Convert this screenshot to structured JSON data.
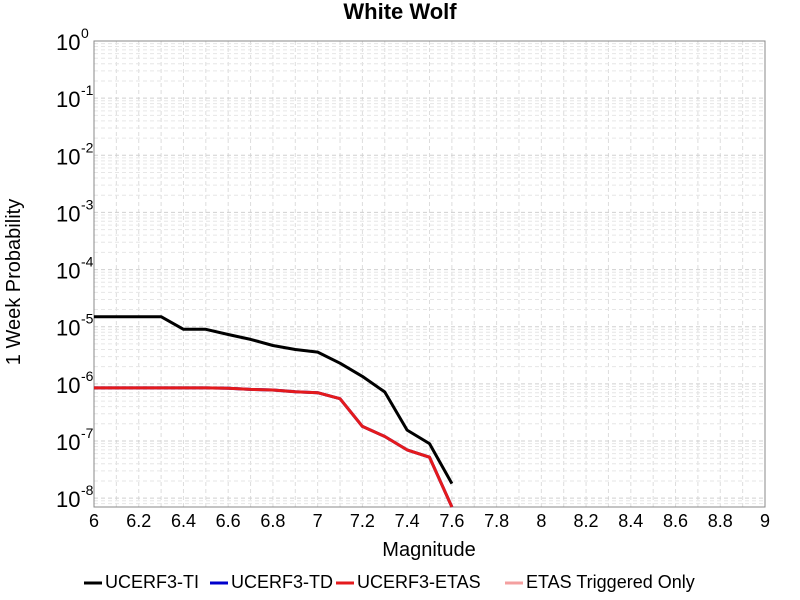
{
  "chart_data": {
    "type": "line",
    "title": "White Wolf",
    "xlabel": "Magnitude",
    "ylabel": "1 Week Probability",
    "xlim": [
      6,
      9
    ],
    "ylim": [
      7e-09,
      1
    ],
    "yscale": "log",
    "grid": true,
    "legend_position": "bottom",
    "x_ticks": [
      "6",
      "6.2",
      "6.4",
      "6.6",
      "6.8",
      "7",
      "7.2",
      "7.4",
      "7.6",
      "7.8",
      "8",
      "8.2",
      "8.4",
      "8.6",
      "8.8",
      "9"
    ],
    "y_ticks": [
      {
        "base": "10",
        "exp": "0",
        "value": 1
      },
      {
        "base": "10",
        "exp": "-1",
        "value": 0.1
      },
      {
        "base": "10",
        "exp": "-2",
        "value": 0.01
      },
      {
        "base": "10",
        "exp": "-3",
        "value": 0.001
      },
      {
        "base": "10",
        "exp": "-4",
        "value": 0.0001
      },
      {
        "base": "10",
        "exp": "-5",
        "value": 1e-05
      },
      {
        "base": "10",
        "exp": "-6",
        "value": 1e-06
      },
      {
        "base": "10",
        "exp": "-7",
        "value": 1e-07
      },
      {
        "base": "10",
        "exp": "-8",
        "value": 1e-08
      }
    ],
    "series": [
      {
        "name": "UCERF3-TI",
        "color": "#000000",
        "x": [
          6.0,
          6.1,
          6.2,
          6.3,
          6.4,
          6.5,
          6.6,
          6.7,
          6.8,
          6.9,
          7.0,
          7.1,
          7.2,
          7.3,
          7.4,
          7.5,
          7.6
        ],
        "y": [
          1.5e-05,
          1.5e-05,
          1.5e-05,
          1.5e-05,
          9e-06,
          9e-06,
          7.3e-06,
          6e-06,
          4.7e-06,
          4e-06,
          3.6e-06,
          2.3e-06,
          1.35e-06,
          7.2e-07,
          1.55e-07,
          9e-08,
          1.8e-08
        ]
      },
      {
        "name": "UCERF3-TD",
        "color": "#0000cc",
        "x": [
          6.0,
          6.1,
          6.2,
          6.3,
          6.4,
          6.5,
          6.6,
          6.7,
          6.8,
          6.9,
          7.0,
          7.1,
          7.2,
          7.3,
          7.4,
          7.5,
          7.6
        ],
        "y": [
          8.5e-07,
          8.5e-07,
          8.5e-07,
          8.5e-07,
          8.5e-07,
          8.5e-07,
          8.4e-07,
          8e-07,
          7.8e-07,
          7.3e-07,
          7e-07,
          5.5e-07,
          1.8e-07,
          1.2e-07,
          7e-08,
          5.2e-08,
          7e-09
        ]
      },
      {
        "name": "UCERF3-ETAS",
        "color": "#e41a1c",
        "x": [
          6.0,
          6.1,
          6.2,
          6.3,
          6.4,
          6.5,
          6.6,
          6.7,
          6.8,
          6.9,
          7.0,
          7.1,
          7.2,
          7.3,
          7.4,
          7.5,
          7.6
        ],
        "y": [
          8.5e-07,
          8.5e-07,
          8.5e-07,
          8.5e-07,
          8.5e-07,
          8.5e-07,
          8.4e-07,
          8e-07,
          7.8e-07,
          7.3e-07,
          7e-07,
          5.5e-07,
          1.8e-07,
          1.2e-07,
          7e-08,
          5.2e-08,
          7e-09
        ]
      },
      {
        "name": "ETAS Triggered Only",
        "color": "#f4a0a0",
        "x": [],
        "y": []
      }
    ]
  }
}
